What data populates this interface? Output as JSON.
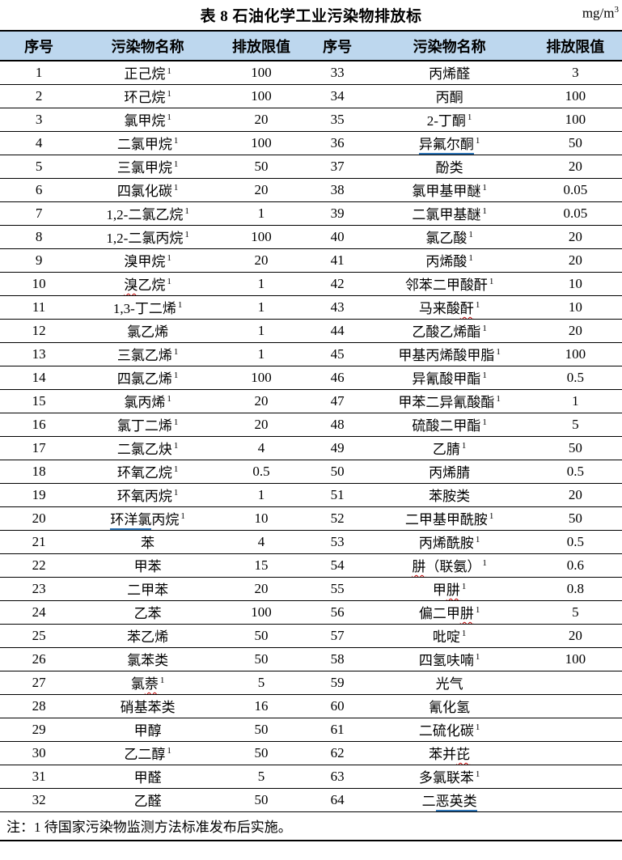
{
  "title": "表 8  石油化学工业污染物排放标",
  "unit": {
    "base": "mg/m",
    "exp": "3"
  },
  "headers": [
    "序号",
    "污染物名称",
    "排放限值",
    "序号",
    "污染物名称",
    "排放限值"
  ],
  "note": "注：1  待国家污染物监测方法标准发布后实施。",
  "colors": {
    "header_bg": "#bdd7ee",
    "border": "#000000",
    "blue_underline": "#2e74b5",
    "red_wavy": "#c00000"
  },
  "rows_left": [
    {
      "no": "1",
      "pre": "正己烷",
      "marked": "",
      "post": "",
      "mark": "",
      "sup": "1",
      "limit": "100"
    },
    {
      "no": "2",
      "pre": "环己烷",
      "marked": "",
      "post": "",
      "mark": "",
      "sup": "1",
      "limit": "100"
    },
    {
      "no": "3",
      "pre": "氯甲烷",
      "marked": "",
      "post": "",
      "mark": "",
      "sup": "1",
      "limit": "20"
    },
    {
      "no": "4",
      "pre": "二氯甲烷",
      "marked": "",
      "post": "",
      "mark": "",
      "sup": "1",
      "limit": "100"
    },
    {
      "no": "5",
      "pre": "三氯甲烷",
      "marked": "",
      "post": "",
      "mark": "",
      "sup": "1",
      "limit": "50"
    },
    {
      "no": "6",
      "pre": "四氯化碳",
      "marked": "",
      "post": "",
      "mark": "",
      "sup": "1",
      "limit": "20"
    },
    {
      "no": "7",
      "pre": "1,2-二氯乙烷",
      "marked": "",
      "post": "",
      "mark": "",
      "sup": "1",
      "limit": "1"
    },
    {
      "no": "8",
      "pre": "1,2-二氯丙烷",
      "marked": "",
      "post": "",
      "mark": "",
      "sup": "1",
      "limit": "100"
    },
    {
      "no": "9",
      "pre": "溴甲烷",
      "marked": "",
      "post": "",
      "mark": "",
      "sup": "1",
      "limit": "20"
    },
    {
      "no": "10",
      "pre": "",
      "marked": "溴",
      "post": "乙烷",
      "mark": "red",
      "sup": "1",
      "limit": "1"
    },
    {
      "no": "11",
      "pre": "1,3-丁二烯",
      "marked": "",
      "post": "",
      "mark": "",
      "sup": "1",
      "limit": "1"
    },
    {
      "no": "12",
      "pre": "氯乙烯",
      "marked": "",
      "post": "",
      "mark": "",
      "sup": "",
      "limit": "1"
    },
    {
      "no": "13",
      "pre": "三氯乙烯",
      "marked": "",
      "post": "",
      "mark": "",
      "sup": "1",
      "limit": "1"
    },
    {
      "no": "14",
      "pre": "四氯乙烯",
      "marked": "",
      "post": "",
      "mark": "",
      "sup": "1",
      "limit": "100"
    },
    {
      "no": "15",
      "pre": "氯丙烯",
      "marked": "",
      "post": "",
      "mark": "",
      "sup": "1",
      "limit": "20"
    },
    {
      "no": "16",
      "pre": "氯丁二烯",
      "marked": "",
      "post": "",
      "mark": "",
      "sup": "1",
      "limit": "20"
    },
    {
      "no": "17",
      "pre": "二氯乙炔",
      "marked": "",
      "post": "",
      "mark": "",
      "sup": "1",
      "limit": "4"
    },
    {
      "no": "18",
      "pre": "环氧乙烷",
      "marked": "",
      "post": "",
      "mark": "",
      "sup": "1",
      "limit": "0.5"
    },
    {
      "no": "19",
      "pre": "环氧丙烷",
      "marked": "",
      "post": "",
      "mark": "",
      "sup": "1",
      "limit": "1"
    },
    {
      "no": "20",
      "pre": "",
      "marked": "环洋氯",
      "post": "丙烷",
      "mark": "blue",
      "sup": "1",
      "limit": "10"
    },
    {
      "no": "21",
      "pre": "苯",
      "marked": "",
      "post": "",
      "mark": "",
      "sup": "",
      "limit": "4"
    },
    {
      "no": "22",
      "pre": "甲苯",
      "marked": "",
      "post": "",
      "mark": "",
      "sup": "",
      "limit": "15"
    },
    {
      "no": "23",
      "pre": "二甲苯",
      "marked": "",
      "post": "",
      "mark": "",
      "sup": "",
      "limit": "20"
    },
    {
      "no": "24",
      "pre": "乙苯",
      "marked": "",
      "post": "",
      "mark": "",
      "sup": "",
      "limit": "100"
    },
    {
      "no": "25",
      "pre": "苯乙烯",
      "marked": "",
      "post": "",
      "mark": "",
      "sup": "",
      "limit": "50"
    },
    {
      "no": "26",
      "pre": "氯苯类",
      "marked": "",
      "post": "",
      "mark": "",
      "sup": "",
      "limit": "50"
    },
    {
      "no": "27",
      "pre": "氯",
      "marked": "萘",
      "post": "",
      "mark": "red",
      "sup": "1",
      "limit": "5"
    },
    {
      "no": "28",
      "pre": "硝基苯类",
      "marked": "",
      "post": "",
      "mark": "",
      "sup": "",
      "limit": "16"
    },
    {
      "no": "29",
      "pre": "甲醇",
      "marked": "",
      "post": "",
      "mark": "",
      "sup": "",
      "limit": "50"
    },
    {
      "no": "30",
      "pre": "乙二醇",
      "marked": "",
      "post": "",
      "mark": "",
      "sup": "1",
      "limit": "50"
    },
    {
      "no": "31",
      "pre": "甲醛",
      "marked": "",
      "post": "",
      "mark": "",
      "sup": "",
      "limit": "5"
    },
    {
      "no": "32",
      "pre": "乙醛",
      "marked": "",
      "post": "",
      "mark": "",
      "sup": "",
      "limit": "50"
    }
  ],
  "rows_right": [
    {
      "no": "33",
      "pre": "丙烯醛",
      "marked": "",
      "post": "",
      "mark": "",
      "sup": "",
      "limit": "3"
    },
    {
      "no": "34",
      "pre": "丙酮",
      "marked": "",
      "post": "",
      "mark": "",
      "sup": "",
      "limit": "100"
    },
    {
      "no": "35",
      "pre": "2-丁酮",
      "marked": "",
      "post": "",
      "mark": "",
      "sup": "1",
      "limit": "100"
    },
    {
      "no": "36",
      "pre": "",
      "marked": "异氟尔酮",
      "post": "",
      "mark": "blue",
      "sup": "1",
      "limit": "50"
    },
    {
      "no": "37",
      "pre": "酚类",
      "marked": "",
      "post": "",
      "mark": "",
      "sup": "",
      "limit": "20"
    },
    {
      "no": "38",
      "pre": "氯甲基甲醚",
      "marked": "",
      "post": "",
      "mark": "",
      "sup": "1",
      "limit": "0.05"
    },
    {
      "no": "39",
      "pre": "二氯甲基醚",
      "marked": "",
      "post": "",
      "mark": "",
      "sup": "1",
      "limit": "0.05"
    },
    {
      "no": "40",
      "pre": "氯乙酸",
      "marked": "",
      "post": "",
      "mark": "",
      "sup": "1",
      "limit": "20"
    },
    {
      "no": "41",
      "pre": "丙烯酸",
      "marked": "",
      "post": "",
      "mark": "",
      "sup": "1",
      "limit": "20"
    },
    {
      "no": "42",
      "pre": "邻苯二甲酸酐",
      "marked": "",
      "post": "",
      "mark": "",
      "sup": "1",
      "limit": "10"
    },
    {
      "no": "43",
      "pre": "马来酸",
      "marked": "酐",
      "post": "",
      "mark": "red",
      "sup": "1",
      "limit": "10"
    },
    {
      "no": "44",
      "pre": "乙酸乙烯酯",
      "marked": "",
      "post": "",
      "mark": "",
      "sup": "1",
      "limit": "20"
    },
    {
      "no": "45",
      "pre": "甲基丙烯酸甲脂",
      "marked": "",
      "post": "",
      "mark": "",
      "sup": "1",
      "limit": "100"
    },
    {
      "no": "46",
      "pre": "异氰酸甲酯",
      "marked": "",
      "post": "",
      "mark": "",
      "sup": "1",
      "limit": "0.5"
    },
    {
      "no": "47",
      "pre": "甲苯二异氰酸酯",
      "marked": "",
      "post": "",
      "mark": "",
      "sup": "1",
      "limit": "1"
    },
    {
      "no": "48",
      "pre": "硫酸二甲酯",
      "marked": "",
      "post": "",
      "mark": "",
      "sup": "1",
      "limit": "5"
    },
    {
      "no": "49",
      "pre": "乙腈",
      "marked": "",
      "post": "",
      "mark": "",
      "sup": "1",
      "limit": "50"
    },
    {
      "no": "50",
      "pre": "丙烯腈",
      "marked": "",
      "post": "",
      "mark": "",
      "sup": "",
      "limit": "0.5"
    },
    {
      "no": "51",
      "pre": "苯胺类",
      "marked": "",
      "post": "",
      "mark": "",
      "sup": "",
      "limit": "20"
    },
    {
      "no": "52",
      "pre": "二甲基甲酰胺",
      "marked": "",
      "post": "",
      "mark": "",
      "sup": "1",
      "limit": "50"
    },
    {
      "no": "53",
      "pre": "丙烯酰胺",
      "marked": "",
      "post": "",
      "mark": "",
      "sup": "1",
      "limit": "0.5"
    },
    {
      "no": "54",
      "pre": "",
      "marked": "肼",
      "post": "（联氨）",
      "mark": "red",
      "sup": "1",
      "limit": "0.6"
    },
    {
      "no": "55",
      "pre": "甲",
      "marked": "肼",
      "post": "",
      "mark": "red",
      "sup": "1",
      "limit": "0.8"
    },
    {
      "no": "56",
      "pre": "偏二甲",
      "marked": "肼",
      "post": "",
      "mark": "red",
      "sup": "1",
      "limit": "5"
    },
    {
      "no": "57",
      "pre": "吡啶",
      "marked": "",
      "post": "",
      "mark": "",
      "sup": "1",
      "limit": "20"
    },
    {
      "no": "58",
      "pre": "四氢呋喃",
      "marked": "",
      "post": "",
      "mark": "",
      "sup": "1",
      "limit": "100"
    },
    {
      "no": "59",
      "pre": "光气",
      "marked": "",
      "post": "",
      "mark": "",
      "sup": "",
      "limit": ""
    },
    {
      "no": "60",
      "pre": "氰化氢",
      "marked": "",
      "post": "",
      "mark": "",
      "sup": "",
      "limit": ""
    },
    {
      "no": "61",
      "pre": "二硫化碳",
      "marked": "",
      "post": "",
      "mark": "",
      "sup": "1",
      "limit": ""
    },
    {
      "no": "62",
      "pre": "苯并",
      "marked": "芘",
      "post": "",
      "mark": "red",
      "sup": "",
      "limit": ""
    },
    {
      "no": "63",
      "pre": "多氯联苯",
      "marked": "",
      "post": "",
      "mark": "",
      "sup": "1",
      "limit": ""
    },
    {
      "no": "64",
      "pre": "二",
      "marked": "恶英类",
      "post": "",
      "mark": "blue",
      "sup": "",
      "limit": ""
    }
  ]
}
